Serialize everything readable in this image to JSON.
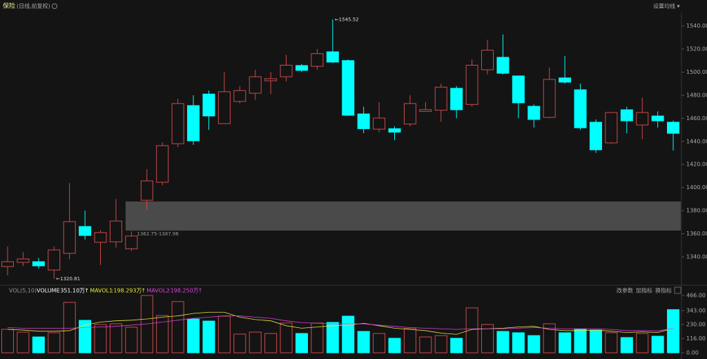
{
  "header": {
    "title": "保险",
    "subtitle": "(日线,前复权)",
    "ma_setting": "设置均线 ▾"
  },
  "chart_data": [
    {
      "type": "candlestick",
      "up_color": "#d0494b",
      "down_color": "#00ffff",
      "open": [
        1331.6,
        1335.2,
        1335.8,
        1328.6,
        1343,
        1366.3,
        1352.6,
        1353,
        1347,
        1389,
        1404.6,
        1438,
        1471,
        1481,
        1455.4,
        1474.6,
        1481.7,
        1492.5,
        1496,
        1505.7,
        1505,
        1517.6,
        1510,
        1463.8,
        1450.6,
        1451,
        1455,
        1466,
        1467,
        1486,
        1472,
        1502,
        1512.8,
        1496.7,
        1470.4,
        1460.8,
        1495,
        1484.7,
        1456.6,
        1438.7,
        1467.4,
        1454.2,
        1462,
        1456.6
      ],
      "high": [
        1349,
        1344,
        1339,
        1349,
        1404,
        1380,
        1363,
        1390,
        1362,
        1416,
        1439,
        1477,
        1480,
        1484,
        1500,
        1488,
        1502,
        1500,
        1515,
        1507,
        1520,
        1545.52,
        1511,
        1470,
        1474,
        1453,
        1480,
        1474,
        1490,
        1488,
        1511,
        1528,
        1532.6,
        1497,
        1472,
        1504,
        1514,
        1490,
        1459,
        1465,
        1470,
        1478,
        1466,
        1458
      ],
      "low": [
        1324,
        1332,
        1330,
        1320.81,
        1338,
        1355,
        1333,
        1348,
        1345,
        1381,
        1402,
        1435,
        1437,
        1450,
        1455,
        1473,
        1476,
        1481,
        1492,
        1500,
        1502,
        1508,
        1462,
        1447,
        1448,
        1441,
        1453,
        1466,
        1457,
        1460,
        1470,
        1498,
        1498,
        1460,
        1452,
        1460,
        1490,
        1450,
        1430,
        1438,
        1447,
        1442,
        1452,
        1432
      ],
      "close": [
        1335.8,
        1338.2,
        1332.2,
        1346,
        1370.5,
        1358.5,
        1361,
        1371,
        1358,
        1405.8,
        1436.3,
        1472.8,
        1440.5,
        1462,
        1483,
        1484,
        1496,
        1494.3,
        1506,
        1501.5,
        1516,
        1508.7,
        1462.6,
        1451,
        1460.2,
        1448,
        1472.8,
        1467.5,
        1487,
        1467.4,
        1506,
        1519,
        1499,
        1473.4,
        1459,
        1493.7,
        1491.3,
        1451.8,
        1432.7,
        1465,
        1457.8,
        1465,
        1457.8,
        1447
      ],
      "ylim": [
        1316.1,
        1551.7
      ],
      "yticks": [
        {
          "value": 1340,
          "label": "1340.00"
        },
        {
          "value": 1360,
          "label": "1360.00"
        },
        {
          "value": 1380,
          "label": "1380.00"
        },
        {
          "value": 1400,
          "label": "1400.00"
        },
        {
          "value": 1420,
          "label": "1420.00"
        },
        {
          "value": 1440,
          "label": "1440.00"
        },
        {
          "value": 1460,
          "label": "1460.00"
        },
        {
          "value": 1480,
          "label": "1480.00"
        },
        {
          "value": 1500,
          "label": "1500.00"
        },
        {
          "value": 1520,
          "label": "1520.00"
        },
        {
          "value": 1540,
          "label": "1540.00"
        }
      ],
      "annotations": [
        {
          "index": 21,
          "value": 1545.52,
          "label": "←1545.52"
        },
        {
          "index": 3,
          "value": 1320.81,
          "label": "←1320.81"
        }
      ],
      "zone": {
        "start_index": 8,
        "low": 1362.75,
        "high": 1387.96,
        "label": "1362.75-1387.96",
        "color": "#4a4a4a"
      }
    },
    {
      "type": "volume",
      "indicator": "VOL(5,10)",
      "separator": ":",
      "buttons": [
        "改参数",
        "加指标",
        "换指标"
      ],
      "series": [
        {
          "name": "VOLUME",
          "current": "351.10万",
          "trend": "↑",
          "color": "#ffffff",
          "values": [
            191,
            168,
            129,
            163,
            410,
            264,
            230,
            236,
            208,
            466,
            303,
            416,
            275,
            258,
            298,
            152,
            168,
            157,
            242,
            157,
            242,
            247,
            298,
            174,
            157,
            118,
            197,
            129,
            140,
            118,
            365,
            230,
            174,
            163,
            140,
            236,
            163,
            191,
            185,
            163,
            124,
            157,
            135,
            351.1
          ]
        },
        {
          "name": "MAVOL1",
          "current": "198.293万",
          "trend": "↑",
          "color": "#e8e83a",
          "values": [
            190,
            185,
            175,
            175,
            180,
            225,
            250,
            260,
            265,
            275,
            290,
            300,
            320,
            330,
            330,
            290,
            270,
            260,
            220,
            200,
            210,
            220,
            225,
            240,
            220,
            200,
            190,
            180,
            160,
            150,
            190,
            195,
            200,
            210,
            215,
            190,
            180,
            180,
            185,
            175,
            165,
            170,
            165,
            198.293
          ]
        },
        {
          "name": "MAVOL2",
          "current": "198.250万",
          "trend": "↑",
          "color": "#e040e0",
          "values": [
            205,
            200,
            200,
            200,
            200,
            205,
            210,
            215,
            225,
            235,
            250,
            265,
            280,
            290,
            300,
            300,
            290,
            280,
            260,
            245,
            240,
            235,
            235,
            235,
            225,
            215,
            205,
            200,
            195,
            190,
            195,
            195,
            195,
            200,
            205,
            200,
            195,
            195,
            195,
            190,
            180,
            180,
            178,
            198.25
          ]
        }
      ],
      "ylim": [
        0,
        494
      ],
      "yticks": [
        {
          "value": 0,
          "label": "0.00"
        },
        {
          "value": 116,
          "label": "116.00"
        },
        {
          "value": 230,
          "label": "230.00"
        },
        {
          "value": 343,
          "label": "343.00"
        },
        {
          "value": 466,
          "label": "466.00"
        }
      ]
    }
  ]
}
